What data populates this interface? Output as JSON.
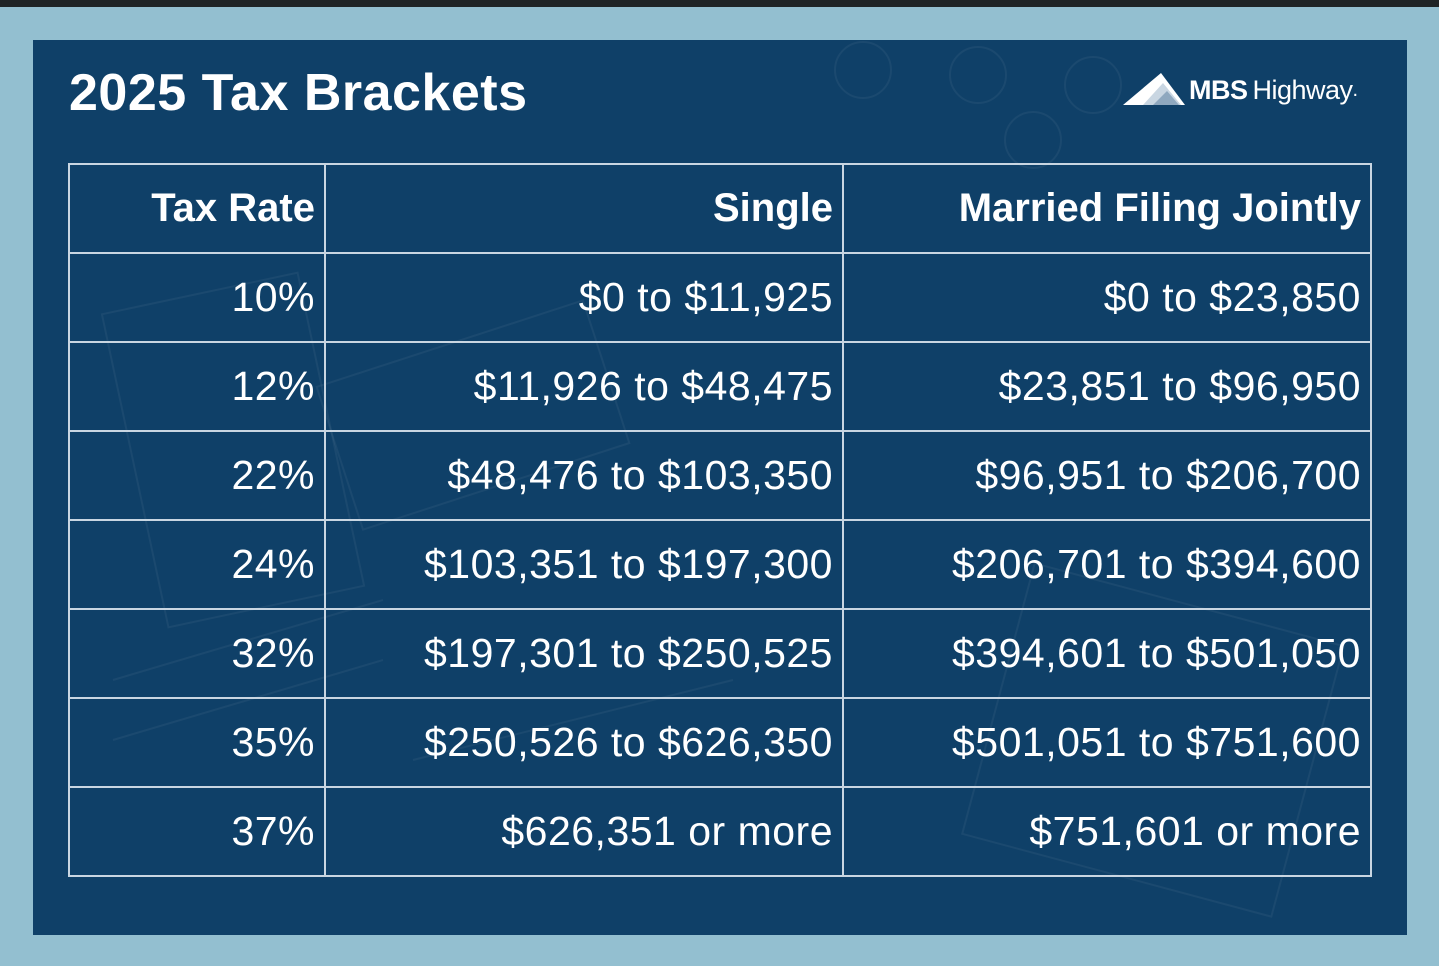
{
  "title": "2025 Tax Brackets",
  "brand": {
    "bold": "MBS",
    "light": "Highway",
    "dot": "."
  },
  "table": {
    "headers": [
      "Tax Rate",
      "Single",
      "Married Filing Jointly"
    ],
    "rows": [
      [
        "10%",
        "$0 to $11,925",
        "$0 to $23,850"
      ],
      [
        "12%",
        "$11,926 to $48,475",
        "$23,851 to $96,950"
      ],
      [
        "22%",
        "$48,476 to $103,350",
        "$96,951 to $206,700"
      ],
      [
        "24%",
        "$103,351 to $197,300",
        "$206,701 to $394,600"
      ],
      [
        "32%",
        "$197,301 to $250,525",
        "$394,601 to $501,050"
      ],
      [
        "35%",
        "$250,526 to $626,350",
        "$501,051 to $751,600"
      ],
      [
        "37%",
        "$626,351 or more",
        "$751,601 or more"
      ]
    ]
  },
  "colors": {
    "page_background": "#93bfd0",
    "card_background": "#0f4068",
    "grid_line": "#c9d6e2",
    "text": "#ffffff"
  },
  "icons": {
    "brand_logo": "mountain-logo-icon"
  }
}
